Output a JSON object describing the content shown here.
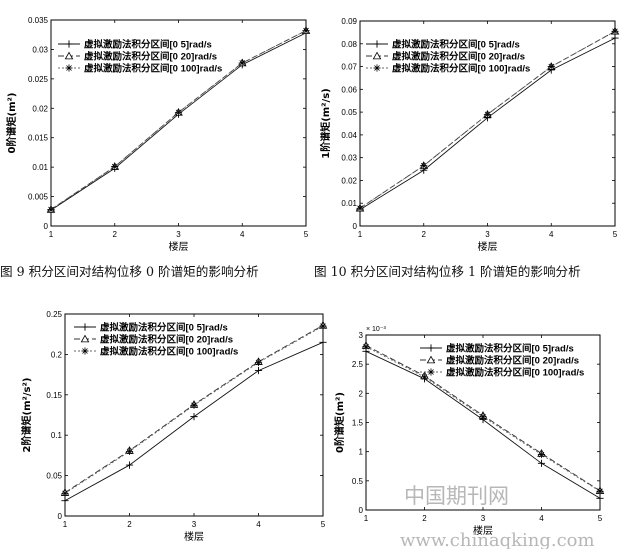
{
  "captions": {
    "fig9": "图 9 积分区间对结构位移 0 阶谱矩的影响分析",
    "fig10": "图 10 积分区间对结构位移 1 阶谱矩的影响分析"
  },
  "watermark": {
    "text": "中国期刊网",
    "url": "www.chinaqking.com"
  },
  "chart_data": [
    {
      "type": "line",
      "xlabel": "楼层",
      "ylabel": "0阶谱矩(m²)",
      "x": [
        1,
        2,
        3,
        4,
        5
      ],
      "xticks": [
        "1",
        "2",
        "3",
        "4",
        "5"
      ],
      "ylim": [
        0,
        0.035
      ],
      "yticks": [
        "0",
        "0.005",
        "0.01",
        "0.015",
        "0.02",
        "0.025",
        "0.03",
        "0.035"
      ],
      "legend_position": "top-left",
      "series": [
        {
          "name": "虚拟激励法积分区间[0 5]rad/s",
          "values": [
            0.0027,
            0.0098,
            0.019,
            0.0274,
            0.0328
          ]
        },
        {
          "name": "虚拟激励法积分区间[0 20]rad/s",
          "values": [
            0.0028,
            0.0101,
            0.0193,
            0.0277,
            0.0332
          ]
        },
        {
          "name": "虚拟激励法积分区间[0 100]rad/s",
          "values": [
            0.0028,
            0.0101,
            0.0193,
            0.0277,
            0.0332
          ]
        }
      ]
    },
    {
      "type": "line",
      "xlabel": "楼层",
      "ylabel": "1阶谱矩(m²/s)",
      "x": [
        1,
        2,
        3,
        4,
        5
      ],
      "xticks": [
        "1",
        "2",
        "3",
        "4",
        "5"
      ],
      "ylim": [
        0,
        0.09
      ],
      "yticks": [
        "0",
        "0.01",
        "0.02",
        "0.03",
        "0.04",
        "0.05",
        "0.06",
        "0.07",
        "0.08",
        "0.09"
      ],
      "legend_position": "top-left",
      "series": [
        {
          "name": "虚拟激励法积分区间[0 5]rad/s",
          "values": [
            0.0072,
            0.0245,
            0.0475,
            0.0685,
            0.0825
          ]
        },
        {
          "name": "虚拟激励法积分区间[0 20]rad/s",
          "values": [
            0.0078,
            0.0265,
            0.049,
            0.07,
            0.0855
          ]
        },
        {
          "name": "虚拟激励法积分区间[0 100]rad/s",
          "values": [
            0.0078,
            0.0265,
            0.049,
            0.07,
            0.0855
          ]
        }
      ]
    },
    {
      "type": "line",
      "xlabel": "楼层",
      "ylabel": "2阶谱矩(m²/s²)",
      "x": [
        1,
        2,
        3,
        4,
        5
      ],
      "xticks": [
        "1",
        "2",
        "3",
        "4",
        "5"
      ],
      "ylim": [
        0,
        0.25
      ],
      "yticks": [
        "0",
        "0.05",
        "0.1",
        "0.15",
        "0.2",
        "0.25"
      ],
      "legend_position": "top-left",
      "series": [
        {
          "name": "虚拟激励法积分区间[0 5]rad/s",
          "values": [
            0.019,
            0.063,
            0.123,
            0.18,
            0.215
          ]
        },
        {
          "name": "虚拟激励法积分区间[0 20]rad/s",
          "values": [
            0.029,
            0.081,
            0.138,
            0.191,
            0.236
          ]
        },
        {
          "name": "虚拟激励法积分区间[0 100]rad/s",
          "values": [
            0.028,
            0.08,
            0.137,
            0.19,
            0.235
          ]
        }
      ]
    },
    {
      "type": "line",
      "xlabel": "楼层",
      "ylabel": "0阶谱矩(m²)",
      "exponent": "× 10⁻³",
      "x": [
        1,
        2,
        3,
        4,
        5
      ],
      "xticks": [
        "1",
        "2",
        "3",
        "4",
        "5"
      ],
      "ylim": [
        0,
        3
      ],
      "yticks": [
        "0",
        "0.5",
        "1",
        "1.5",
        "2",
        "2.5",
        "3"
      ],
      "legend_position": "top-right",
      "series": [
        {
          "name": "虚拟激励法积分区间[0 5]rad/s",
          "values": [
            2.72,
            2.25,
            1.55,
            0.8,
            0.2
          ]
        },
        {
          "name": "虚拟激励法积分区间[0 20]rad/s",
          "values": [
            2.82,
            2.3,
            1.62,
            0.97,
            0.33
          ]
        },
        {
          "name": "虚拟激励法积分区间[0 100]rad/s",
          "values": [
            2.8,
            2.28,
            1.6,
            0.95,
            0.32
          ]
        }
      ]
    }
  ]
}
